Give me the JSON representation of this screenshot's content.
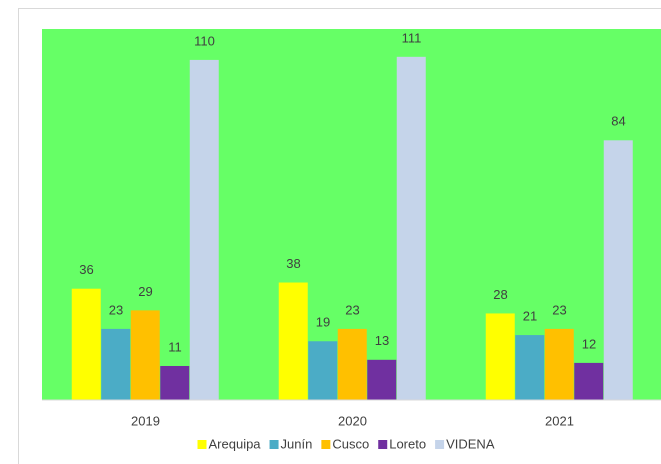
{
  "chart_data": {
    "type": "bar",
    "categories": [
      "2019",
      "2020",
      "2021"
    ],
    "series": [
      {
        "name": "Arequipa",
        "color": "#ffff00",
        "values": [
          36,
          38,
          28
        ]
      },
      {
        "name": "Junín",
        "color": "#4bacc6",
        "values": [
          23,
          19,
          21
        ]
      },
      {
        "name": "Cusco",
        "color": "#ffc000",
        "values": [
          29,
          23,
          23
        ]
      },
      {
        "name": "Loreto",
        "color": "#7030a0",
        "values": [
          11,
          13,
          12
        ]
      },
      {
        "name": "VIDENA",
        "color": "#c5d4ea",
        "values": [
          110,
          111,
          84
        ]
      }
    ],
    "ylim": [
      0,
      120
    ],
    "legend": "bottom",
    "background": "#66ff66"
  }
}
